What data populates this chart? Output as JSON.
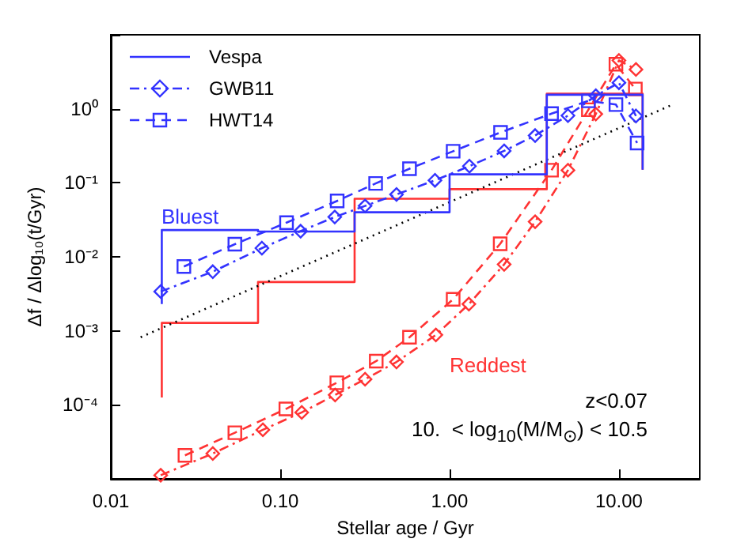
{
  "chart_data": {
    "type": "line",
    "xlabel": "Stellar age / Gyr",
    "ylabel": "Δf / Δlog₁₀(t/Gyr)",
    "log": "xy",
    "xlim": [
      0.01,
      30
    ],
    "xticks": [
      0.01,
      {
        "value": 0.1,
        "label": "0.10"
      },
      {
        "value": 1,
        "label": "1.00"
      },
      {
        "value": 10,
        "label": "10.00"
      }
    ],
    "ylim": [
      1e-05,
      10
    ],
    "yticks": [
      {
        "value": 1e-05,
        "label": null
      },
      {
        "value": 0.0001,
        "label": "10⁻⁴"
      },
      {
        "value": 0.001,
        "label": "10⁻³"
      },
      {
        "value": 0.01,
        "label": "10⁻²"
      },
      {
        "value": 0.1,
        "label": "10⁻¹"
      },
      {
        "value": 1,
        "label": "10⁰"
      },
      {
        "value": 10,
        "label": null
      }
    ],
    "grid": false,
    "legend": "top left",
    "series": [
      {
        "name": "Vespa",
        "type": "step",
        "color": "#3333ff",
        "marker": "none",
        "line_style": "solid",
        "x": [
          0.02,
          0.02,
          0.074,
          0.275,
          1.0,
          3.75,
          13.8
        ],
        "values": [
          0.0023,
          0.023,
          0.022,
          0.04,
          0.13,
          1.55,
          0.15
        ]
      },
      {
        "name": "GWB11",
        "color": "#3333ff",
        "marker": "diamond",
        "line_style": "dashdot",
        "x": [
          0.0197,
          0.04,
          0.078,
          0.132,
          0.21,
          0.317,
          0.486,
          0.82,
          1.31,
          2.1,
          3.2,
          5.0,
          7.3,
          10.0,
          12.6
        ],
        "values": [
          0.0034,
          0.0063,
          0.0131,
          0.0222,
          0.0345,
          0.0487,
          0.0696,
          0.108,
          0.168,
          0.27,
          0.435,
          0.81,
          1.5,
          2.25,
          0.8
        ]
      },
      {
        "name": "HWT14",
        "color": "#3333ff",
        "marker": "square",
        "line_style": "dashed",
        "x": [
          0.027,
          0.054,
          0.109,
          0.217,
          0.366,
          0.58,
          1.05,
          2.0,
          4.0,
          6.6,
          9.6,
          12.8
        ],
        "values": [
          0.0074,
          0.0148,
          0.029,
          0.057,
          0.098,
          0.155,
          0.267,
          0.48,
          0.86,
          1.28,
          1.14,
          0.345
        ]
      },
      {
        "type": "step",
        "color": "#ff3333",
        "marker": "none",
        "line_style": "solid",
        "x": [
          0.02,
          0.02,
          0.074,
          0.275,
          1.0,
          3.75,
          13.8
        ],
        "values": [
          0.000126,
          0.00128,
          0.00457,
          0.061,
          0.082,
          1.6,
          0.15
        ]
      },
      {
        "color": "#ff3333",
        "marker": "diamond",
        "line_style": "dashdot",
        "x": [
          0.0197,
          0.04,
          0.079,
          0.134,
          0.211,
          0.317,
          0.486,
          0.83,
          1.3,
          2.1,
          3.2,
          5.0,
          7.3,
          10.0,
          12.6
        ],
        "values": [
          1.12e-05,
          2.2e-05,
          4.6e-05,
          7.9e-05,
          0.000136,
          0.000222,
          0.00038,
          0.00088,
          0.0023,
          0.0079,
          0.0298,
          0.148,
          0.85,
          4.5,
          3.4
        ]
      },
      {
        "color": "#ff3333",
        "marker": "square",
        "line_style": "dashed",
        "x": [
          0.0274,
          0.054,
          0.108,
          0.216,
          0.369,
          0.58,
          1.05,
          1.99,
          4.0,
          6.6,
          9.6,
          12.5
        ],
        "values": [
          2.08e-05,
          4.2e-05,
          8.8e-05,
          0.000199,
          0.00039,
          0.00082,
          0.00267,
          0.015,
          0.148,
          0.97,
          4.0,
          1.85
        ]
      },
      {
        "color": "#000000",
        "marker": "none",
        "line_style": "dotted",
        "x": [
          0.015,
          20.4
        ],
        "values": [
          0.00082,
          1.12
        ]
      }
    ],
    "annotations": [
      "Bluest",
      "Reddest",
      "z<0.07",
      "10.  < log$_{10}$(M/M$_{⊙}$) < 10.5"
    ]
  }
}
